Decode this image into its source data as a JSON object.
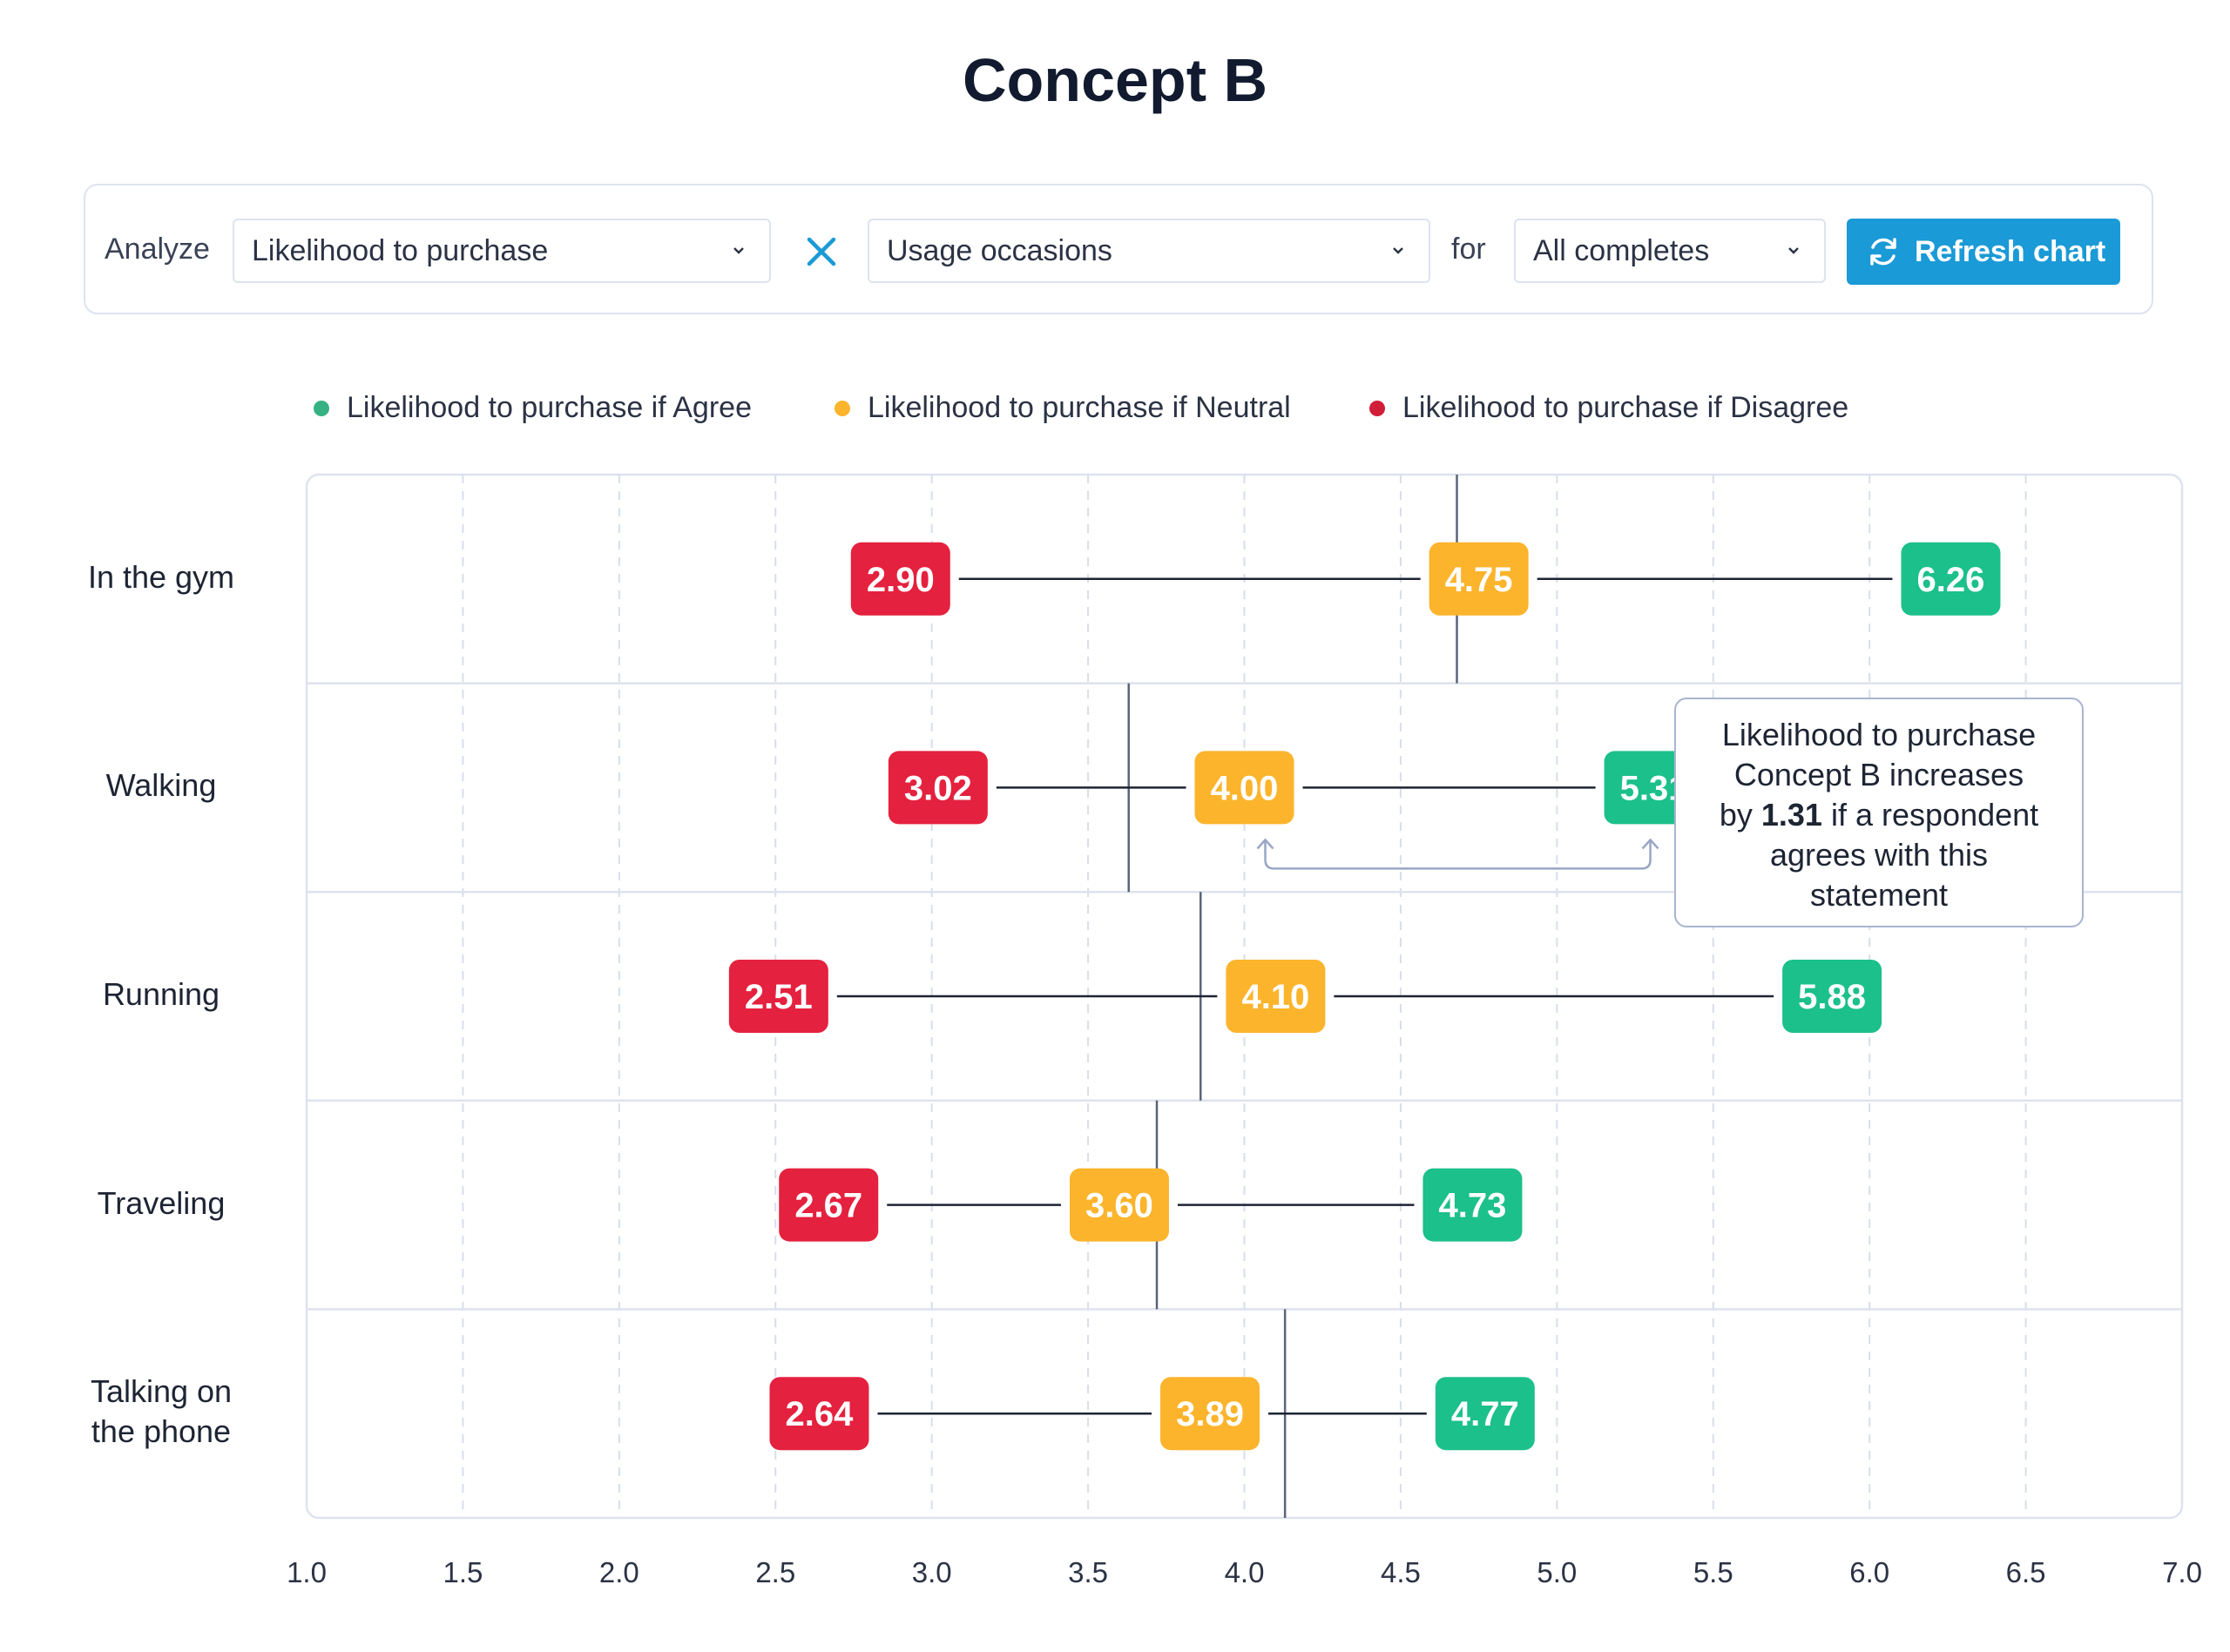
{
  "title": "Concept B",
  "controls": {
    "analyze_label": "Analyze",
    "metric_select": "Likelihood to purchase",
    "dimension_select": "Usage occasions",
    "for_label": "for",
    "segment_select": "All completes",
    "refresh_label": "Refresh chart"
  },
  "icons": {
    "clear": "close-icon",
    "refresh": "refresh-icon",
    "dropdown": "chevron-down-icon"
  },
  "colors": {
    "agree": "#1cc08a",
    "neutral": "#fbb42c",
    "disagree": "#e4213e",
    "accent": "#1a9ad6"
  },
  "tooltip": {
    "line1": "Likelihood to purchase",
    "line2": "Concept B increases",
    "pre": "by",
    "value": "1.31",
    "post": "if a respondent",
    "line4": "agrees with this",
    "line5": "statement"
  },
  "chart_data": {
    "type": "dumbbell",
    "title": "Concept B",
    "xlim": [
      1.0,
      7.0
    ],
    "x_ticks": [
      "1.0",
      "1.5",
      "2.0",
      "2.5",
      "3.0",
      "3.5",
      "4.0",
      "4.5",
      "5.0",
      "5.5",
      "6.0",
      "6.5",
      "7.0"
    ],
    "grid": true,
    "legend_position": "top",
    "categories": [
      "In the gym",
      "Walking",
      "Running",
      "Traveling",
      "Talking on the phone"
    ],
    "category_lines": [
      [
        "In the gym"
      ],
      [
        "Walking"
      ],
      [
        "Running"
      ],
      [
        "Traveling"
      ],
      [
        "Talking on",
        "the phone"
      ]
    ],
    "series": [
      {
        "name": "Likelihood to purchase if Agree",
        "key": "agree",
        "values": [
          6.26,
          5.31,
          5.88,
          4.73,
          4.77
        ]
      },
      {
        "name": "Likelihood to purchase if Neutral",
        "key": "neutral",
        "values": [
          4.75,
          4.0,
          4.1,
          3.6,
          3.89
        ]
      },
      {
        "name": "Likelihood to purchase if Disagree",
        "key": "disagree",
        "values": [
          2.9,
          3.02,
          2.51,
          2.67,
          2.64
        ]
      }
    ],
    "reference_values": [
      4.68,
      3.63,
      3.86,
      3.72,
      4.13
    ],
    "labels": {
      "agree": [
        "6.26",
        "5.31",
        "5.88",
        "4.73",
        "4.77"
      ],
      "neutral": [
        "4.75",
        "4.00",
        "4.10",
        "3.60",
        "3.89"
      ],
      "disagree": [
        "2.90",
        "3.02",
        "2.51",
        "2.67",
        "2.64"
      ]
    }
  }
}
